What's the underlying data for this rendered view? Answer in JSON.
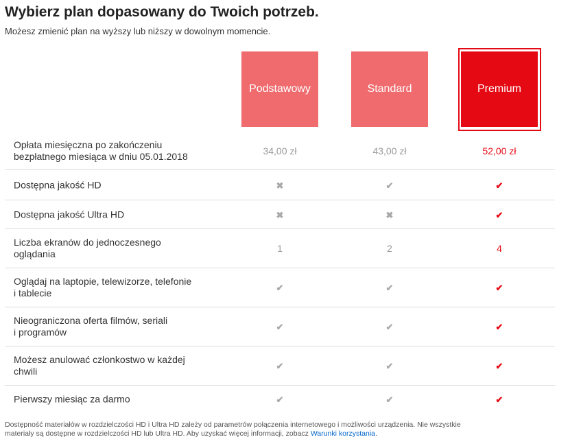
{
  "header": {
    "title": "Wybierz plan dopasowany do Twoich potrzeb.",
    "subtitle": "Możesz zmienić plan na wyższy lub niższy w dowolnym momencie."
  },
  "plans": [
    {
      "label": "Podstawowy",
      "selected": false
    },
    {
      "label": "Standard",
      "selected": false
    },
    {
      "label": "Premium",
      "selected": true
    }
  ],
  "icons": {
    "check": "✔",
    "cross": "✖"
  },
  "colors": {
    "accent": "#e50914",
    "inactive_plan": "#ef6b6e",
    "muted": "#999999"
  },
  "rows": [
    {
      "label_lines": [
        "Opłata miesięczna po zakończeniu",
        "bezpłatnego miesiąca w dniu 05.01.2018"
      ],
      "values": [
        "34,00 zł",
        "43,00 zł",
        "52,00 zł"
      ]
    },
    {
      "label_lines": [
        "Dostępna jakość HD"
      ],
      "values": [
        "cross",
        "check",
        "check"
      ]
    },
    {
      "label_lines": [
        "Dostępna jakość Ultra HD"
      ],
      "values": [
        "cross",
        "cross",
        "check"
      ]
    },
    {
      "label_lines": [
        "Liczba ekranów do jednoczesnego",
        "oglądania"
      ],
      "values": [
        "1",
        "2",
        "4"
      ]
    },
    {
      "label_lines": [
        "Oglądaj na laptopie, telewizorze, telefonie",
        "i tablecie"
      ],
      "values": [
        "check",
        "check",
        "check"
      ]
    },
    {
      "label_lines": [
        "Nieograniczona oferta filmów, seriali",
        "i programów"
      ],
      "values": [
        "check",
        "check",
        "check"
      ]
    },
    {
      "label_lines": [
        "Możesz anulować członkostwo w każdej",
        "chwili"
      ],
      "values": [
        "check",
        "check",
        "check"
      ]
    },
    {
      "label_lines": [
        "Pierwszy miesiąc za darmo"
      ],
      "values": [
        "check",
        "check",
        "check"
      ]
    }
  ],
  "footnote": {
    "text_line1": "Dostępność materiałów w rozdzielczości HD i Ultra HD zależy od parametrów połączenia internetowego i możliwości urządzenia. Nie wszystkie",
    "text_line2": "materiały są dostępne w rozdzielczości HD lub Ultra HD. Aby uzyskać więcej informacji, zobacz ",
    "link": "Warunki korzystania",
    "end": "."
  }
}
